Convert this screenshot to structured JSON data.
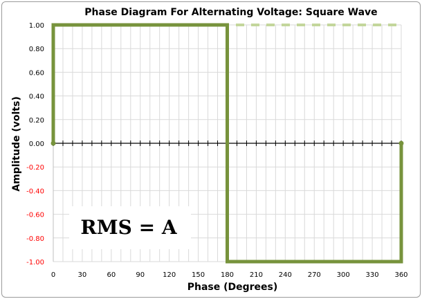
{
  "chart_data": {
    "type": "line",
    "title": "Phase Diagram For Alternating Voltage: Square Wave",
    "xlabel": "Phase (Degrees)",
    "ylabel": "Amplitude (volts)",
    "xlim": [
      0,
      360
    ],
    "ylim": [
      -1.0,
      1.0
    ],
    "x_ticks": [
      0,
      30,
      60,
      90,
      120,
      150,
      180,
      210,
      240,
      270,
      300,
      330,
      360
    ],
    "y_ticks": [
      1.0,
      0.8,
      0.6,
      0.4,
      0.2,
      0.0,
      -0.2,
      -0.4,
      -0.6,
      -0.8,
      -1.0
    ],
    "y_tick_labels": [
      "1.00",
      "0.80",
      "0.60",
      "0.40",
      "0.20",
      "0.00",
      "-0.20",
      "-0.40",
      "-0.60",
      "-0.80",
      "-1.00"
    ],
    "grid": true,
    "series": [
      {
        "color": "#77933c",
        "x": [
          0,
          0,
          180,
          180,
          360,
          360
        ],
        "y": [
          0,
          1,
          1,
          -1,
          -1,
          0
        ]
      },
      {
        "color": "#c3d69b",
        "x": [
          0,
          180,
          360
        ],
        "y": [
          1,
          1,
          1
        ]
      }
    ],
    "annotations": [
      "RMS = A"
    ],
    "colors": {
      "negative_tick_label": "#ff0000",
      "positive_tick_label": "#000000",
      "grid": "#d9d9d9",
      "axis": "#000000"
    }
  }
}
